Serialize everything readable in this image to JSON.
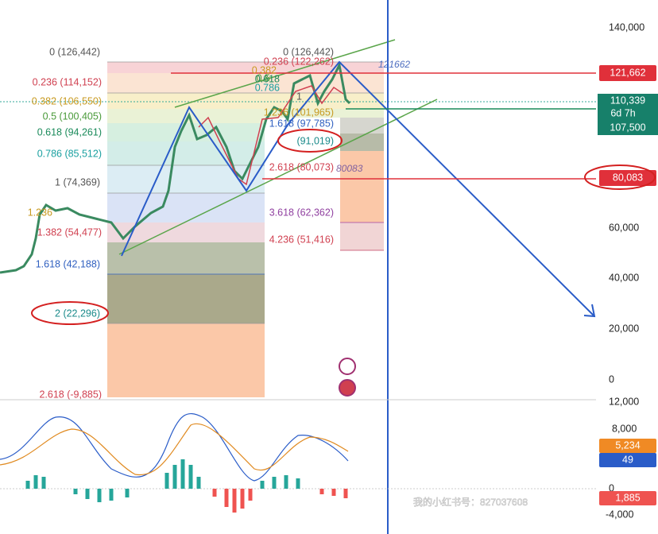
{
  "price_axis": [
    "140,000",
    "60,000",
    "40,000",
    "20,000",
    "0"
  ],
  "macd_axis": [
    "12,000",
    "8,000",
    "0",
    "-4,000"
  ],
  "fib_left": [
    "0 (126,442)",
    "0.236 (114,152)",
    "0.382 (106,550)",
    "0.5 (100,405)",
    "0.618 (94,261)",
    "0.786 (85,512)",
    "1 (74,369)",
    "1.236",
    "1.382 (54,477)",
    "1.618 (42,188)",
    "2 (22,296)",
    "2.618 (-9,885)"
  ],
  "fib_right": [
    "0 (126,442)",
    "0.236 (122,262)",
    "0.382",
    "0.5",
    "0.618",
    "0.786",
    "1",
    "1.236 (101,965)",
    "1.618 (97,785)",
    "(91,019)",
    "2.618 (80,073)",
    "3.618 (62,362)",
    "4.236 (51,416)"
  ],
  "price_tags": {
    "target": "121,662",
    "last": "110,339",
    "countdown": "6d 7h",
    "level": "107,500",
    "support": "80,083"
  },
  "annotations": {
    "high": "121662",
    "low": "80083"
  },
  "macd_tags": {
    "signal": "5,234",
    "macd": "49",
    "histogram": "1,885"
  },
  "watermark": "我的小红书号：827037608"
}
